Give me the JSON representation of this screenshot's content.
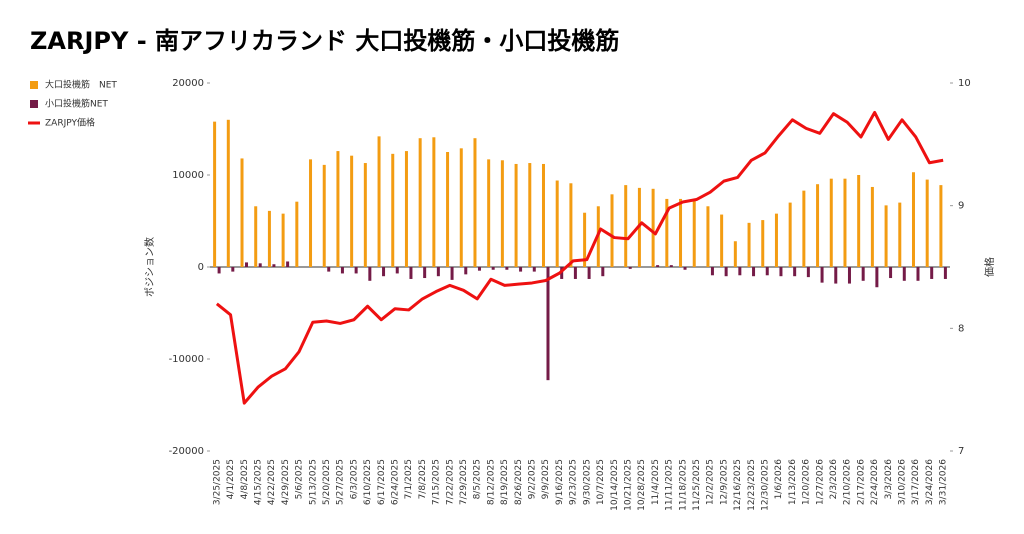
{
  "chart_data": {
    "type": "combo",
    "title": "ZARJPY - 南アフリカランド 大口投機筋・小口投機筋",
    "y_label": "ポジション数",
    "y2_label": "価格",
    "legend": "top-left",
    "categories": [
      "3/25/2025",
      "4/1/2025",
      "4/8/2025",
      "4/15/2025",
      "4/22/2025",
      "4/29/2025",
      "5/6/2025",
      "5/13/2025",
      "5/20/2025",
      "5/27/2025",
      "6/3/2025",
      "6/10/2025",
      "6/17/2025",
      "6/24/2025",
      "7/1/2025",
      "7/8/2025",
      "7/15/2025",
      "7/22/2025",
      "7/29/2025",
      "8/5/2025",
      "8/12/2025",
      "8/19/2025",
      "8/26/2025",
      "9/2/2025",
      "9/9/2025",
      "9/16/2025",
      "9/23/2025",
      "9/30/2025",
      "10/7/2025",
      "10/14/2025",
      "10/21/2025",
      "10/28/2025",
      "11/4/2025",
      "11/11/2025",
      "11/18/2025",
      "11/25/2025",
      "12/2/2025",
      "12/9/2025",
      "12/16/2025",
      "12/23/2025",
      "12/30/2025",
      "1/6/2026",
      "1/13/2026",
      "1/20/2026",
      "1/27/2026",
      "2/3/2026",
      "2/10/2026",
      "2/17/2026",
      "2/24/2026",
      "3/3/2026",
      "3/10/2026",
      "3/17/2026",
      "3/24/2026",
      "3/31/2026"
    ],
    "series": [
      {
        "name": "大口投機筋　NET",
        "type": "bar",
        "axis": "y",
        "color": "#f39c12",
        "values": [
          15800,
          16000,
          11800,
          6600,
          6100,
          5800,
          7100,
          11700,
          11100,
          12600,
          12100,
          11300,
          14200,
          12300,
          12600,
          14000,
          14100,
          12500,
          12900,
          14000,
          11700,
          11600,
          11200,
          11300,
          11200,
          9400,
          9100,
          5900,
          6600,
          7900,
          8900,
          8600,
          8500,
          7400,
          7400,
          7400,
          6600,
          5700,
          2800,
          4800,
          5100,
          5800,
          7000,
          8300,
          9000,
          9600,
          9600,
          10000,
          8700,
          6700,
          7000,
          10300,
          9500,
          8900
        ]
      },
      {
        "name": "小口投機筋NET",
        "type": "bar",
        "axis": "y",
        "color": "#741b47",
        "values": [
          -700,
          -500,
          500,
          400,
          300,
          600,
          0,
          0,
          -500,
          -700,
          -700,
          -1500,
          -1000,
          -700,
          -1300,
          -1200,
          -1000,
          -1400,
          -800,
          -400,
          -300,
          -300,
          -500,
          -500,
          -12300,
          -1300,
          -1300,
          -1300,
          -1000,
          0,
          -200,
          0,
          200,
          200,
          -300,
          0,
          -900,
          -1000,
          -900,
          -1000,
          -900,
          -1000,
          -1000,
          -1100,
          -1700,
          -1800,
          -1800,
          -1500,
          -2200,
          -1200,
          -1500,
          -1500,
          -1300,
          -1300
        ]
      },
      {
        "name": "ZARJPY価格",
        "type": "line",
        "axis": "y2",
        "color": "#ee1111",
        "values": [
          8.2,
          8.11,
          7.39,
          7.52,
          7.61,
          7.67,
          7.81,
          8.05,
          8.06,
          8.04,
          8.07,
          8.18,
          8.07,
          8.16,
          8.15,
          8.24,
          8.3,
          8.35,
          8.31,
          8.24,
          8.4,
          8.35,
          8.36,
          8.37,
          8.39,
          8.45,
          8.55,
          8.56,
          8.81,
          8.74,
          8.73,
          8.86,
          8.77,
          8.98,
          9.03,
          9.05,
          9.11,
          9.2,
          9.23,
          9.37,
          9.43,
          9.57,
          9.7,
          9.63,
          9.59,
          9.75,
          9.68,
          9.56,
          9.76,
          9.54,
          9.7,
          9.56,
          9.35,
          9.37
        ]
      }
    ],
    "ylim": [
      -20000,
      20000
    ],
    "yticks": [
      -20000,
      -10000,
      0,
      10000,
      20000
    ],
    "y2lim": [
      7,
      10
    ],
    "y2ticks": [
      7,
      8,
      9,
      10
    ]
  }
}
